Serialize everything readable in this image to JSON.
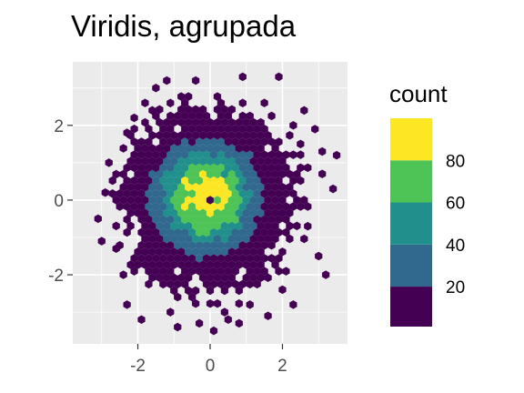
{
  "chart_data": {
    "type": "hexbin",
    "title": "Viridis, agrupada",
    "xlabel": "",
    "ylabel": "",
    "xlim": [
      -3.8,
      3.8
    ],
    "ylim": [
      -3.85,
      3.7
    ],
    "x_ticks": [
      -2,
      0,
      2
    ],
    "y_ticks": [
      -2,
      0,
      2
    ],
    "x_tick_labels": [
      "-2",
      "0",
      "2"
    ],
    "y_tick_labels": [
      "-2",
      "0",
      "2"
    ],
    "grid": true,
    "legend": {
      "title": "count",
      "position": "right",
      "scale": "binned",
      "breaks": [
        20,
        40,
        60,
        80
      ],
      "labels": [
        "20",
        "40",
        "60",
        "80"
      ],
      "colors": [
        "#440154",
        "#31688E",
        "#21908C",
        "#4EC356",
        "#FDE725"
      ],
      "range": [
        1,
        100
      ]
    },
    "data_description": "bivariate standard normal sample binned into hexagons; counts peak near (-0.1, 0.1)",
    "bin_width": 0.2,
    "peak": {
      "x": -0.1,
      "y": 0.1,
      "count": 100
    },
    "scatter_points": [
      [
        -2.8,
        1.0
      ],
      [
        -3.1,
        -0.5
      ],
      [
        -2.6,
        -1.3
      ],
      [
        -3.0,
        -1.1
      ],
      [
        -2.3,
        1.8
      ],
      [
        -1.8,
        2.6
      ],
      [
        -1.5,
        3.0
      ],
      [
        -1.2,
        3.2
      ],
      [
        -0.4,
        3.2
      ],
      [
        0.9,
        3.3
      ],
      [
        1.9,
        3.3
      ],
      [
        2.5,
        1.5
      ],
      [
        2.6,
        2.4
      ],
      [
        3.1,
        1.3
      ],
      [
        3.5,
        1.2
      ],
      [
        3.4,
        0.3
      ],
      [
        3.1,
        0.7
      ],
      [
        3.0,
        -1.5
      ],
      [
        3.2,
        -2.0
      ],
      [
        2.3,
        -2.8
      ],
      [
        2.0,
        -2.4
      ],
      [
        1.1,
        -2.8
      ],
      [
        0.4,
        -3.0
      ],
      [
        -0.3,
        -3.3
      ],
      [
        -1.9,
        -3.2
      ],
      [
        -2.3,
        -2.8
      ],
      [
        -1.1,
        -3.0
      ],
      [
        1.6,
        -3.1
      ],
      [
        0.1,
        -3.5
      ],
      [
        0.5,
        -3.2
      ],
      [
        2.7,
        -0.7
      ],
      [
        -2.1,
        2.2
      ],
      [
        -1.6,
        2.4
      ],
      [
        1.5,
        2.6
      ],
      [
        2.3,
        2.0
      ],
      [
        -2.9,
        0.2
      ],
      [
        -2.4,
        -2.0
      ],
      [
        2.9,
        1.9
      ],
      [
        -0.9,
        -3.4
      ],
      [
        0.8,
        -3.3
      ]
    ]
  }
}
